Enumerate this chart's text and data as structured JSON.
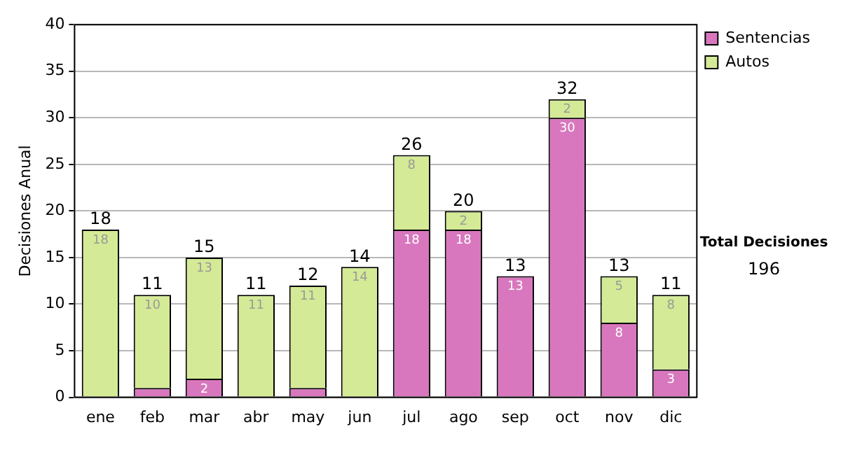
{
  "chart_data": {
    "type": "bar",
    "stacked": true,
    "ylabel": "Decisiones Anual",
    "categories": [
      "ene",
      "feb",
      "mar",
      "abr",
      "may",
      "jun",
      "jul",
      "ago",
      "sep",
      "oct",
      "nov",
      "dic"
    ],
    "series": [
      {
        "name": "Sentencias",
        "color": "#d877bd",
        "values": [
          0,
          1,
          2,
          0,
          1,
          0,
          18,
          18,
          13,
          30,
          8,
          3
        ],
        "value_labels": [
          null,
          null,
          "2",
          null,
          null,
          null,
          "18",
          "18",
          "13",
          "30",
          "8",
          "3"
        ]
      },
      {
        "name": "Autos",
        "color": "#d4ea96",
        "values": [
          18,
          10,
          13,
          11,
          11,
          14,
          8,
          2,
          0,
          2,
          5,
          8
        ],
        "value_labels": [
          "18",
          "10",
          "13",
          "11",
          "11",
          "14",
          "8",
          "2",
          null,
          "2",
          "5",
          "8"
        ]
      }
    ],
    "totals": [
      "18",
      "11",
      "15",
      "11",
      "12",
      "14",
      "26",
      "20",
      "13",
      "32",
      "13",
      "11"
    ],
    "ylim": [
      0,
      40
    ],
    "yticks": [
      0,
      5,
      10,
      15,
      20,
      25,
      30,
      35,
      40
    ],
    "grid": "y",
    "legend": "right",
    "annotations": [
      "Total Decisiones",
      "196"
    ]
  }
}
